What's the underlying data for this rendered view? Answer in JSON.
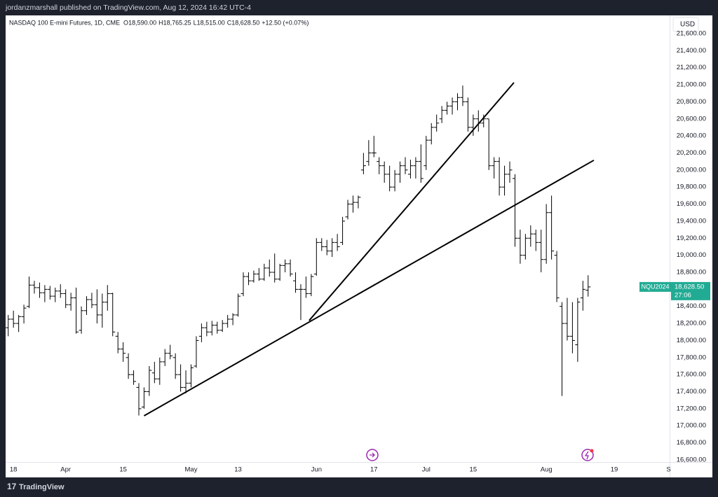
{
  "header": {
    "published": "jordanzmarshall published on TradingView.com, Aug 12, 2024 16:42 UTC-4",
    "footer": "TradingView"
  },
  "chart_data": {
    "type": "ohlc",
    "legend": {
      "symbol": "NASDAQ 100 E-mini Futures, 1D, CME",
      "ohlc": [
        {
          "key": "O",
          "value": "18,590.00"
        },
        {
          "key": "H",
          "value": "18,765.25"
        },
        {
          "key": "L",
          "value": "18,515.00"
        },
        {
          "key": "C",
          "value": "18,628.50"
        }
      ],
      "change": "+12.50 (+0.07%)"
    },
    "currency": "USD",
    "ticker": "NQU2024",
    "last_price": {
      "value": 18628.5,
      "label": "18,628.50"
    },
    "countdown": "27:06",
    "color": "#000000",
    "label_color": "#22ab94",
    "x": [
      0,
      1,
      2,
      3,
      4,
      5,
      6,
      7,
      8,
      9,
      10,
      11,
      12,
      13,
      14,
      15,
      16,
      17,
      18,
      19,
      20,
      21,
      22,
      23,
      24,
      25,
      26,
      27,
      28,
      29,
      30,
      31,
      32,
      33,
      34,
      35,
      36,
      37,
      38,
      39,
      40,
      41,
      42,
      43,
      44,
      45,
      46,
      47,
      48,
      49,
      50,
      51,
      52,
      53,
      54,
      55,
      56,
      57,
      58,
      59,
      60,
      61,
      62,
      63,
      64,
      65,
      66,
      67,
      68,
      69,
      70,
      71,
      72,
      73,
      74,
      75,
      76,
      77,
      78,
      79,
      80,
      81,
      82,
      83,
      84,
      85,
      86,
      87,
      88,
      89,
      90,
      91,
      92,
      93,
      94,
      95,
      96,
      97,
      98,
      99,
      100,
      101,
      102,
      103,
      104,
      105,
      106,
      107,
      108,
      109,
      110,
      111
    ],
    "open": [
      18150,
      18250,
      18200,
      18280,
      18400,
      18650,
      18620,
      18560,
      18600,
      18520,
      18580,
      18550,
      18420,
      18500,
      18120,
      18350,
      18480,
      18420,
      18300,
      18450,
      18550,
      18050,
      17900,
      17800,
      17600,
      17450,
      17220,
      17400,
      17620,
      17550,
      17750,
      17850,
      17800,
      17600,
      17450,
      17500,
      17700,
      18050,
      18150,
      18100,
      18180,
      18120,
      18200,
      18250,
      18300,
      18550,
      18750,
      18700,
      18780,
      18720,
      18850,
      18800,
      18720,
      18880,
      18900,
      18700,
      18600,
      18600,
      18550,
      18780,
      19150,
      19100,
      19050,
      19150,
      19150,
      19450,
      19600,
      19620,
      20000,
      20100,
      20200,
      20100,
      20050,
      19950,
      19800,
      19950,
      20050,
      19950,
      20050,
      20100,
      20050,
      20350,
      20500,
      20600,
      20700,
      20750,
      20800,
      20850,
      20800,
      20500,
      20600,
      20550,
      20600,
      20050,
      20100,
      19800,
      19950,
      19900,
      19200,
      19000,
      19200,
      19250,
      19150,
      18950,
      19500,
      19000,
      18400,
      18200,
      18050,
      17950,
      18500,
      18590
    ],
    "high": [
      18300,
      18350,
      18300,
      18420,
      18750,
      18700,
      18680,
      18650,
      18640,
      18620,
      18660,
      18600,
      18560,
      18620,
      18400,
      18520,
      18560,
      18600,
      18550,
      18650,
      18560,
      18100,
      17980,
      17850,
      17650,
      17500,
      17450,
      17700,
      17750,
      17800,
      17900,
      17950,
      17850,
      17720,
      17650,
      17720,
      18050,
      18200,
      18220,
      18230,
      18220,
      18240,
      18300,
      18320,
      18550,
      18800,
      18800,
      18820,
      18850,
      18900,
      18950,
      19020,
      18900,
      18950,
      18950,
      18800,
      18660,
      18750,
      18780,
      19200,
      19200,
      19180,
      19200,
      19250,
      19450,
      19650,
      19700,
      19700,
      20200,
      20350,
      20400,
      20150,
      20100,
      20050,
      20000,
      20100,
      20150,
      20120,
      20150,
      20300,
      20400,
      20550,
      20650,
      20750,
      20800,
      20850,
      20900,
      20990,
      20850,
      20650,
      20700,
      20650,
      20600,
      20150,
      20150,
      20050,
      20100,
      19950,
      19300,
      19250,
      19350,
      19300,
      19300,
      19600,
      19700,
      19050,
      18450,
      18500,
      18450,
      18500,
      18700,
      18765.25
    ],
    "low": [
      18050,
      18150,
      18100,
      18200,
      18380,
      18550,
      18500,
      18450,
      18480,
      18450,
      18500,
      18380,
      18350,
      18080,
      18080,
      18300,
      18380,
      18200,
      18150,
      18350,
      18050,
      17850,
      17750,
      17550,
      17480,
      17120,
      17200,
      17350,
      17500,
      17480,
      17700,
      17780,
      17550,
      17400,
      17380,
      17450,
      17680,
      17980,
      18050,
      18060,
      18080,
      18100,
      18150,
      18180,
      18280,
      18520,
      18650,
      18680,
      18700,
      18700,
      18750,
      18680,
      18700,
      18800,
      18750,
      18560,
      18240,
      18500,
      18520,
      18760,
      19050,
      19000,
      18980,
      19050,
      19120,
      19420,
      19500,
      19550,
      19950,
      20050,
      20150,
      19950,
      19850,
      19750,
      19750,
      19850,
      19950,
      19900,
      19900,
      19850,
      20000,
      20300,
      20450,
      20550,
      20650,
      20650,
      20700,
      20750,
      20450,
      20400,
      20450,
      20500,
      20000,
      19900,
      19700,
      19700,
      19850,
      19100,
      18900,
      18950,
      19100,
      19050,
      18800,
      18900,
      18950,
      18450,
      17350,
      18000,
      17850,
      17750,
      18350,
      18515
    ],
    "close": [
      18250,
      18200,
      18280,
      18380,
      18650,
      18620,
      18560,
      18600,
      18520,
      18580,
      18550,
      18420,
      18500,
      18100,
      18350,
      18480,
      18420,
      18300,
      18450,
      18550,
      18100,
      17900,
      17850,
      17600,
      17520,
      17200,
      17400,
      17650,
      17550,
      17750,
      17850,
      17820,
      17600,
      17450,
      17500,
      17680,
      18000,
      18150,
      18100,
      18180,
      18120,
      18200,
      18250,
      18300,
      18520,
      18750,
      18700,
      18780,
      18720,
      18850,
      18800,
      18720,
      18880,
      18900,
      18780,
      18600,
      18600,
      18550,
      18750,
      19150,
      19100,
      19050,
      19150,
      19100,
      19400,
      19600,
      19620,
      19680,
      20050,
      20200,
      20200,
      20050,
      19950,
      19800,
      19950,
      20050,
      20000,
      20050,
      20100,
      19900,
      20350,
      20500,
      20550,
      20700,
      20750,
      20800,
      20850,
      20800,
      20500,
      20600,
      20550,
      20600,
      20050,
      20100,
      19800,
      19950,
      20000,
      19200,
      19000,
      19200,
      19250,
      19150,
      18950,
      19500,
      19050,
      18500,
      18200,
      18050,
      18000,
      18450,
      18600,
      18628.5
    ],
    "trendlines": [
      {
        "x": [
          26,
          112.1
        ],
        "y": [
          17117,
          20114
        ]
      },
      {
        "x": [
          57.6,
          96.8
        ],
        "y": [
          18234,
          21025
        ]
      }
    ],
    "xlim": [
      -0.5,
      126.6
    ],
    "xticks": [
      {
        "value": 1,
        "label": "18"
      },
      {
        "value": 11,
        "label": "Apr"
      },
      {
        "value": 22,
        "label": "15"
      },
      {
        "value": 35,
        "label": "May"
      },
      {
        "value": 44,
        "label": "13"
      },
      {
        "value": 59,
        "label": "Jun"
      },
      {
        "value": 70,
        "label": "17"
      },
      {
        "value": 80,
        "label": "Jul"
      },
      {
        "value": 89,
        "label": "15"
      },
      {
        "value": 103,
        "label": "Aug"
      },
      {
        "value": 116,
        "label": "19"
      },
      {
        "value": 126.4,
        "label": "S"
      }
    ],
    "ylim": [
      16575,
      21813
    ],
    "yticks": [
      {
        "value": 16600,
        "label": "16,600.00"
      },
      {
        "value": 16800,
        "label": "16,800.00"
      },
      {
        "value": 17000,
        "label": "17,000.00"
      },
      {
        "value": 17200,
        "label": "17,200.00"
      },
      {
        "value": 17400,
        "label": "17,400.00"
      },
      {
        "value": 17600,
        "label": "17,600.00"
      },
      {
        "value": 17800,
        "label": "17,800.00"
      },
      {
        "value": 18000,
        "label": "18,000.00"
      },
      {
        "value": 18200,
        "label": "18,200.00"
      },
      {
        "value": 18400,
        "label": "18,400.00"
      },
      {
        "value": 18600,
        "label": "18,600.00"
      },
      {
        "value": 18800,
        "label": "18,800.00"
      },
      {
        "value": 19000,
        "label": "19,000.00"
      },
      {
        "value": 19200,
        "label": "19,200.00"
      },
      {
        "value": 19400,
        "label": "19,400.00"
      },
      {
        "value": 19600,
        "label": "19,600.00"
      },
      {
        "value": 19800,
        "label": "19,800.00"
      },
      {
        "value": 20000,
        "label": "20,000.00"
      },
      {
        "value": 20200,
        "label": "20,200.00"
      },
      {
        "value": 20400,
        "label": "20,400.00"
      },
      {
        "value": 20600,
        "label": "20,600.00"
      },
      {
        "value": 20800,
        "label": "20,800.00"
      },
      {
        "value": 21000,
        "label": "21,000.00"
      },
      {
        "value": 21200,
        "label": "21,200.00"
      },
      {
        "value": 21400,
        "label": "21,400.00"
      },
      {
        "value": 21600,
        "label": "21,600.00"
      }
    ]
  }
}
